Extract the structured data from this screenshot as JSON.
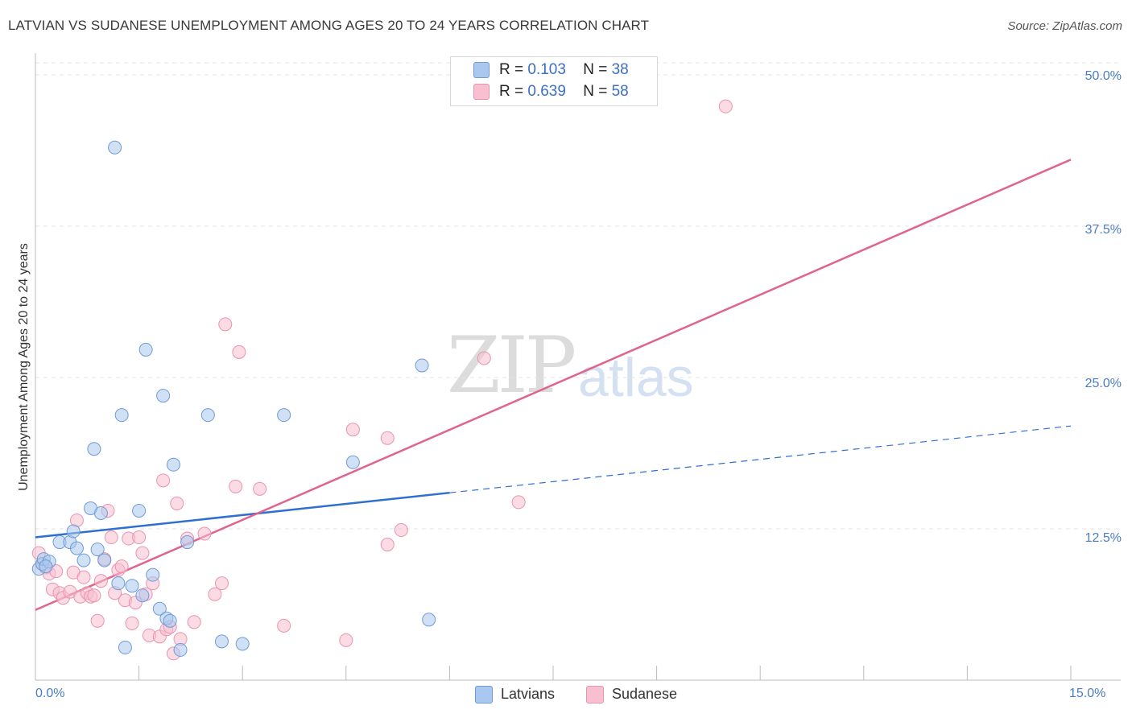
{
  "header": {
    "title": "LATVIAN VS SUDANESE UNEMPLOYMENT AMONG AGES 20 TO 24 YEARS CORRELATION CHART",
    "source": "Source: ZipAtlas.com"
  },
  "watermark": {
    "zip": "ZIP",
    "atlas": "atlas"
  },
  "legend": {
    "latvians": {
      "r_label": "R =",
      "r_value": "0.103",
      "n_label": "N =",
      "n_value": "38"
    },
    "sudanese": {
      "r_label": "R =",
      "r_value": "0.639",
      "n_label": "N =",
      "n_value": "58"
    }
  },
  "colors": {
    "latvians_fill": "#aac8ef",
    "latvians_stroke": "#6f9bd6",
    "latvians_line": "#2f6fd0",
    "sudanese_fill": "#f7bfd0",
    "sudanese_stroke": "#ea93ae",
    "sudanese_line": "#e0648e",
    "grid": "#e3e3e3",
    "tick_text": "#4a7cc4"
  },
  "chart_data": {
    "type": "scatter",
    "title": "LATVIAN VS SUDANESE UNEMPLOYMENT AMONG AGES 20 TO 24 YEARS CORRELATION CHART",
    "xlabel": "",
    "ylabel": "Unemployment Among Ages 20 to 24 years",
    "xlim": [
      0,
      15
    ],
    "ylim": [
      0,
      51
    ],
    "x_tick_labels": [
      "0.0%",
      "15.0%"
    ],
    "y_ticks": [
      12.5,
      25.0,
      37.5,
      50.0
    ],
    "y_tick_labels": [
      "12.5%",
      "25.0%",
      "37.5%",
      "50.0%"
    ],
    "legend_labels": [
      "Latvians",
      "Sudanese"
    ],
    "series": [
      {
        "name": "Latvians",
        "trend": {
          "x_start": 0,
          "y_start": 11.8,
          "x_solid_end": 6.0,
          "x_end": 15,
          "y_end": 21.0
        },
        "points": [
          [
            0.05,
            9.2
          ],
          [
            0.1,
            9.6
          ],
          [
            0.12,
            10.0
          ],
          [
            0.2,
            9.8
          ],
          [
            0.15,
            9.4
          ],
          [
            0.35,
            11.4
          ],
          [
            0.5,
            11.4
          ],
          [
            0.55,
            12.3
          ],
          [
            0.6,
            10.9
          ],
          [
            0.7,
            9.9
          ],
          [
            0.8,
            14.2
          ],
          [
            0.85,
            19.1
          ],
          [
            0.9,
            10.8
          ],
          [
            0.95,
            13.8
          ],
          [
            1.0,
            9.9
          ],
          [
            1.15,
            44.0
          ],
          [
            1.2,
            8.0
          ],
          [
            1.25,
            21.9
          ],
          [
            1.3,
            2.7
          ],
          [
            1.4,
            7.8
          ],
          [
            1.5,
            14.0
          ],
          [
            1.55,
            7.0
          ],
          [
            1.6,
            27.3
          ],
          [
            1.7,
            8.7
          ],
          [
            1.8,
            5.9
          ],
          [
            1.85,
            23.5
          ],
          [
            1.9,
            5.1
          ],
          [
            1.95,
            4.9
          ],
          [
            2.0,
            17.8
          ],
          [
            2.1,
            2.5
          ],
          [
            2.2,
            11.4
          ],
          [
            2.5,
            21.9
          ],
          [
            2.7,
            3.2
          ],
          [
            3.0,
            3.0
          ],
          [
            3.6,
            21.9
          ],
          [
            4.6,
            18.0
          ],
          [
            5.6,
            26.0
          ],
          [
            5.7,
            5.0
          ]
        ]
      },
      {
        "name": "Sudanese",
        "trend": {
          "x_start": 0,
          "y_start": 5.8,
          "x_end": 15,
          "y_end": 43.0
        },
        "points": [
          [
            0.05,
            10.5
          ],
          [
            0.1,
            9.6
          ],
          [
            0.15,
            9.3
          ],
          [
            0.2,
            8.8
          ],
          [
            0.25,
            7.5
          ],
          [
            0.3,
            9.0
          ],
          [
            0.35,
            7.2
          ],
          [
            0.4,
            6.8
          ],
          [
            0.5,
            7.3
          ],
          [
            0.55,
            8.9
          ],
          [
            0.6,
            13.2
          ],
          [
            0.65,
            6.9
          ],
          [
            0.7,
            8.5
          ],
          [
            0.75,
            7.2
          ],
          [
            0.8,
            6.9
          ],
          [
            0.85,
            7.0
          ],
          [
            0.9,
            4.9
          ],
          [
            0.95,
            8.2
          ],
          [
            1.0,
            10.0
          ],
          [
            1.05,
            14.0
          ],
          [
            1.1,
            11.8
          ],
          [
            1.15,
            7.2
          ],
          [
            1.2,
            9.1
          ],
          [
            1.25,
            9.4
          ],
          [
            1.3,
            6.6
          ],
          [
            1.35,
            11.7
          ],
          [
            1.4,
            4.7
          ],
          [
            1.45,
            6.4
          ],
          [
            1.5,
            11.8
          ],
          [
            1.55,
            10.5
          ],
          [
            1.6,
            7.1
          ],
          [
            1.65,
            3.7
          ],
          [
            1.7,
            8.0
          ],
          [
            1.8,
            3.6
          ],
          [
            1.85,
            16.5
          ],
          [
            1.9,
            4.2
          ],
          [
            1.95,
            4.4
          ],
          [
            2.0,
            2.2
          ],
          [
            2.05,
            14.6
          ],
          [
            2.1,
            3.4
          ],
          [
            2.2,
            11.7
          ],
          [
            2.3,
            4.8
          ],
          [
            2.45,
            12.1
          ],
          [
            2.6,
            7.1
          ],
          [
            2.7,
            8.0
          ],
          [
            2.75,
            29.4
          ],
          [
            2.9,
            16.0
          ],
          [
            2.95,
            27.1
          ],
          [
            3.25,
            15.8
          ],
          [
            3.6,
            4.5
          ],
          [
            4.5,
            3.3
          ],
          [
            4.6,
            20.7
          ],
          [
            5.1,
            20.0
          ],
          [
            5.1,
            11.2
          ],
          [
            5.3,
            12.4
          ],
          [
            6.5,
            26.6
          ],
          [
            7.0,
            14.7
          ],
          [
            10.0,
            47.4
          ]
        ]
      }
    ]
  }
}
